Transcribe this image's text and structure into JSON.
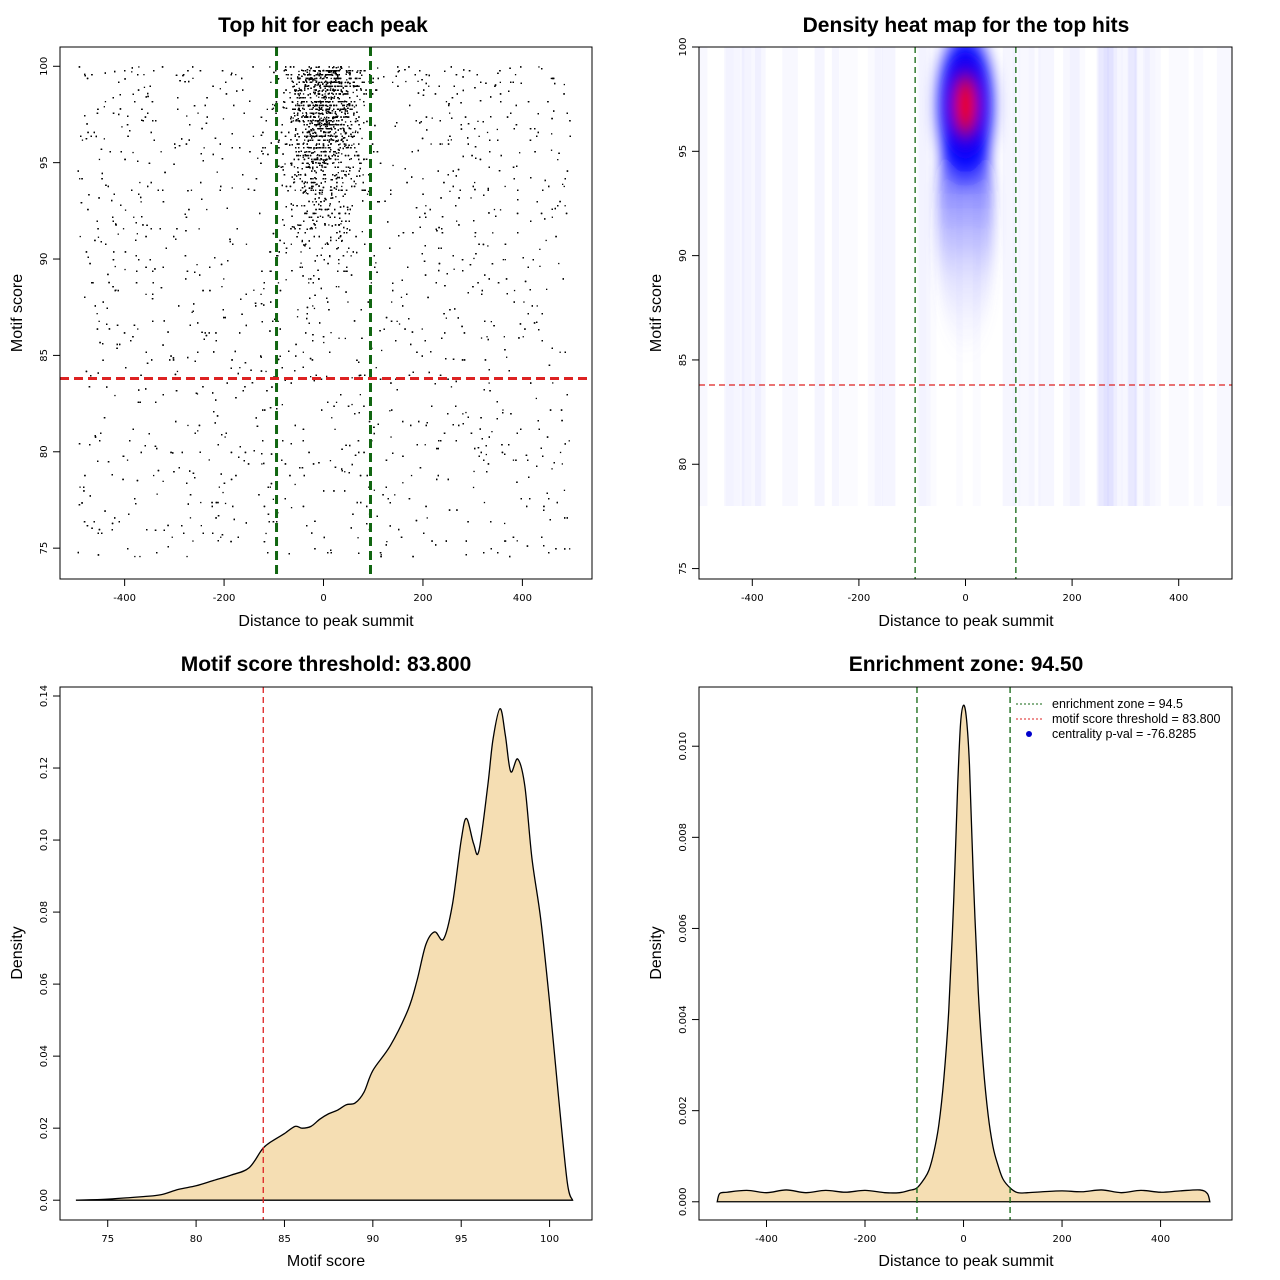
{
  "colors": {
    "threshold_line": "#dd2222",
    "zone_line": "#116611",
    "density_fill": "#f5deb3",
    "points": "#000000",
    "heat_low": "#ffffff",
    "heat_mid": "#0000ff",
    "heat_high": "#ff0000"
  },
  "chart_data": [
    {
      "type": "scatter",
      "title": "Top hit for each peak",
      "xlabel": "Distance to peak summit",
      "ylabel": "Motif score",
      "xlim": [
        -530,
        540
      ],
      "ylim": [
        73.4,
        101.0
      ],
      "xticks": [
        -400,
        -200,
        0,
        200,
        400
      ],
      "yticks": [
        75,
        80,
        85,
        90,
        95,
        100
      ],
      "xtick_labels": [
        "-400",
        "-200",
        "0",
        "200",
        "400"
      ],
      "ytick_labels": [
        "75",
        "80",
        "85",
        "90",
        "95",
        "100"
      ],
      "threshold": 83.8,
      "enrichment_zone": [
        -94.5,
        94.5
      ],
      "distribution": {
        "x_range": [
          -500,
          500
        ],
        "score_range": [
          74.5,
          100
        ],
        "central_sd": 38,
        "n_points_approx": 9000
      }
    },
    {
      "type": "heatmap",
      "title": "Density heat map for the top hits",
      "xlabel": "Distance to peak summit",
      "ylabel": "Motif score",
      "xlim": [
        -500,
        500
      ],
      "ylim": [
        74.5,
        100.0
      ],
      "xticks": [
        -400,
        -200,
        0,
        200,
        400
      ],
      "yticks": [
        75,
        80,
        85,
        90,
        95,
        100
      ],
      "xtick_labels": [
        "-400",
        "-200",
        "0",
        "200",
        "400"
      ],
      "ytick_labels": [
        "75",
        "80",
        "85",
        "90",
        "95",
        "100"
      ],
      "threshold": 83.8,
      "enrichment_zone": [
        -94.5,
        94.5
      ],
      "hotspot": {
        "x": 0,
        "y": 97.2
      }
    },
    {
      "type": "area",
      "title": "Motif score threshold: 83.800",
      "xlabel": "Motif score",
      "ylabel": "Density",
      "xlim": [
        72.3,
        102.4
      ],
      "ylim": [
        -0.0055,
        0.1425
      ],
      "xticks": [
        75,
        80,
        85,
        90,
        95,
        100
      ],
      "yticks": [
        0.0,
        0.02,
        0.04,
        0.06,
        0.08,
        0.1,
        0.12,
        0.14
      ],
      "xtick_labels": [
        "75",
        "80",
        "85",
        "90",
        "95",
        "100"
      ],
      "ytick_labels": [
        "0.00",
        "0.02",
        "0.04",
        "0.06",
        "0.08",
        "0.10",
        "0.12",
        "0.14"
      ],
      "threshold": 83.8,
      "x": [
        73.2,
        75,
        77,
        78,
        79,
        80,
        81,
        82,
        83,
        83.8,
        84.5,
        85,
        85.6,
        86,
        86.5,
        87,
        87.5,
        88,
        88.5,
        89,
        89.5,
        90,
        91,
        92,
        92.5,
        93,
        93.5,
        94,
        94.5,
        95,
        95.3,
        95.7,
        96,
        96.5,
        96.8,
        97.2,
        97.5,
        97.8,
        98.2,
        98.6,
        99,
        99.5,
        100,
        100.5,
        101,
        101.3
      ],
      "y": [
        0.0,
        0.0003,
        0.001,
        0.0015,
        0.003,
        0.004,
        0.0055,
        0.007,
        0.009,
        0.0145,
        0.017,
        0.0185,
        0.0205,
        0.02,
        0.0205,
        0.0225,
        0.024,
        0.025,
        0.0265,
        0.027,
        0.03,
        0.036,
        0.043,
        0.053,
        0.061,
        0.071,
        0.0745,
        0.0725,
        0.082,
        0.1,
        0.106,
        0.099,
        0.097,
        0.115,
        0.128,
        0.1365,
        0.129,
        0.119,
        0.1225,
        0.115,
        0.095,
        0.078,
        0.055,
        0.029,
        0.005,
        0.0
      ]
    },
    {
      "type": "area",
      "title": "Enrichment zone: 94.50",
      "xlabel": "Distance to peak summit",
      "ylabel": "Density",
      "xlim": [
        -537,
        545
      ],
      "ylim": [
        -0.0004,
        0.0113
      ],
      "xticks": [
        -400,
        -200,
        0,
        200,
        400
      ],
      "yticks": [
        0.0,
        0.002,
        0.004,
        0.006,
        0.008,
        0.01
      ],
      "xtick_labels": [
        "-400",
        "-200",
        "0",
        "200",
        "400"
      ],
      "ytick_labels": [
        "0.000",
        "0.002",
        "0.004",
        "0.006",
        "0.008",
        "0.010"
      ],
      "enrichment_zone": [
        -94.5,
        94.5
      ],
      "legend": {
        "position": "top-right",
        "entries": [
          {
            "label": "enrichment zone = 94.5",
            "style": "dotted",
            "color": "#116611"
          },
          {
            "label": "motif score threshold = 83.800",
            "style": "dotted",
            "color": "#dd2222"
          },
          {
            "label": "centrality p-val = -76.8285",
            "style": "point",
            "color": "#0000cc"
          }
        ]
      },
      "x": [
        -500,
        -495,
        -480,
        -440,
        -400,
        -360,
        -320,
        -280,
        -240,
        -200,
        -160,
        -130,
        -110,
        -95,
        -80,
        -70,
        -60,
        -50,
        -40,
        -30,
        -20,
        -12,
        -6,
        0,
        6,
        12,
        20,
        30,
        40,
        50,
        60,
        70,
        80,
        95,
        110,
        130,
        160,
        200,
        240,
        280,
        320,
        360,
        400,
        440,
        480,
        495,
        500
      ],
      "y": [
        0.0,
        0.00018,
        0.00021,
        0.00025,
        0.0002,
        0.00026,
        0.0002,
        0.00025,
        0.00021,
        0.00025,
        0.0002,
        0.0002,
        0.00025,
        0.0003,
        0.0005,
        0.0007,
        0.0011,
        0.0017,
        0.0027,
        0.0042,
        0.0066,
        0.0091,
        0.0105,
        0.0109,
        0.0106,
        0.0096,
        0.0071,
        0.0046,
        0.003,
        0.0019,
        0.0012,
        0.0008,
        0.0005,
        0.0003,
        0.0002,
        0.0002,
        0.00022,
        0.00024,
        0.00022,
        0.00026,
        0.0002,
        0.00025,
        0.00021,
        0.00024,
        0.00026,
        0.00018,
        0.0
      ]
    }
  ]
}
